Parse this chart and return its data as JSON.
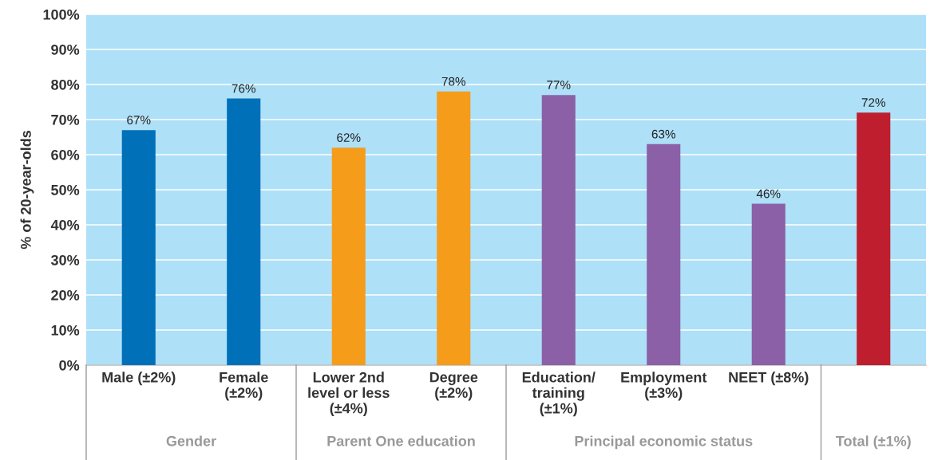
{
  "chart_data": {
    "type": "bar",
    "ylabel": "% of 20-year-olds",
    "categories": [
      "Male (±2%)",
      "Female\n(±2%)",
      "Lower 2nd\nlevel or less\n(±4%)",
      "Degree\n(±2%)",
      "Education/\ntraining\n(±1%)",
      "Employment\n(±3%)",
      "NEET (±8%)",
      null
    ],
    "values": [
      67,
      76,
      62,
      78,
      77,
      63,
      46,
      72
    ],
    "colors": [
      "#0070b9",
      "#0070b9",
      "#f59c1b",
      "#f59c1b",
      "#8b60a6",
      "#8b60a6",
      "#8b60a6",
      "#be1e2d"
    ],
    "value_labels": [
      "67%",
      "76%",
      "62%",
      "78%",
      "77%",
      "63%",
      "46%",
      "72%"
    ],
    "ylim": [
      0,
      100
    ],
    "yticks": [
      {
        "value": 0,
        "label": "0%"
      },
      {
        "value": 10,
        "label": "10%"
      },
      {
        "value": 20,
        "label": "20%"
      },
      {
        "value": 30,
        "label": "30%"
      },
      {
        "value": 40,
        "label": "40%"
      },
      {
        "value": 50,
        "label": "50%"
      },
      {
        "value": 60,
        "label": "60%"
      },
      {
        "value": 70,
        "label": "70%"
      },
      {
        "value": 80,
        "label": "80%"
      },
      {
        "value": 90,
        "label": "90%"
      },
      {
        "value": 100,
        "label": "100%"
      }
    ],
    "grid": "y",
    "annotations": [
      "Gender",
      "Parent One education",
      "Principal economic status",
      "Total (±1%)"
    ]
  }
}
